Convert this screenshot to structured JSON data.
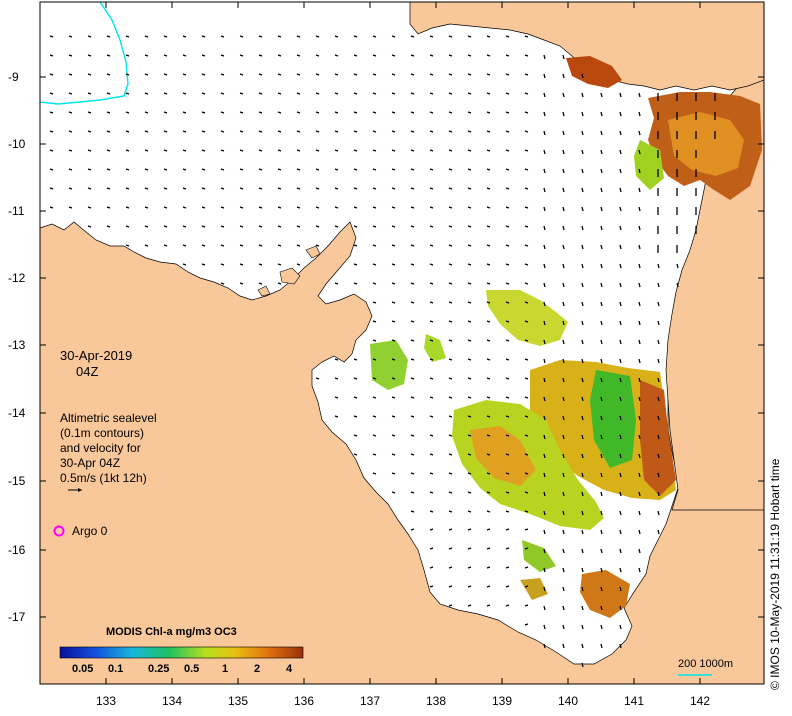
{
  "map": {
    "date": "30-Apr-2019",
    "time": "04Z",
    "note_lines": [
      "Altimetric sealevel",
      "(0.1m contours)",
      "and velocity for",
      "30-Apr 04Z",
      "0.5m/s (1kt 12h)"
    ],
    "argo_label": "Argo 0",
    "argo_color": "#ff00ff",
    "land_color": "#f8c89a",
    "sea_color": "#ffffff",
    "contour_color": "#00e5ee",
    "x_ticks": [
      "133",
      "134",
      "135",
      "136",
      "137",
      "138",
      "139",
      "140",
      "141",
      "142"
    ],
    "y_ticks": [
      "-9",
      "-10",
      "-11",
      "-12",
      "-13",
      "-14",
      "-15",
      "-16",
      "-17"
    ],
    "colorbar": {
      "title": "MODIS Chl-a mg/m3 OC3",
      "ticks": [
        "0.05",
        "0.1",
        "0.25",
        "0.5",
        "1",
        "2",
        "4"
      ],
      "colors": [
        "#08109c",
        "#1454e0",
        "#16b8d8",
        "#20c060",
        "#b8e020",
        "#e8c010",
        "#e07010",
        "#9a3008"
      ]
    },
    "scale_label": "200  1000m",
    "credit": "© IMOS 10-May-2019 11:31:19 Hobart time"
  }
}
